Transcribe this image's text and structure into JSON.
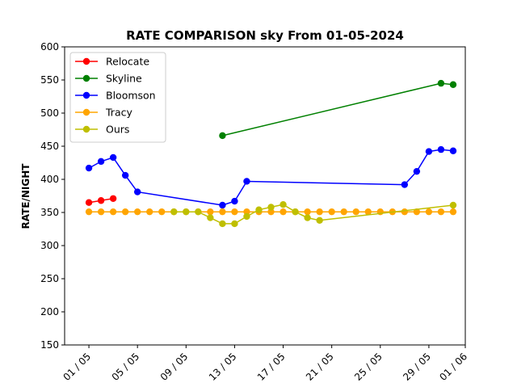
{
  "chart_data": {
    "type": "line",
    "title": "RATE COMPARISON sky From 01-05-2024",
    "xlabel": "",
    "ylabel": "RATE/NIGHT",
    "x_type": "date",
    "xlim": [
      "2024-04-29",
      "2024-06-01"
    ],
    "ylim": [
      150,
      600
    ],
    "x_ticks": [
      {
        "date": "2024-05-01",
        "label": "01 / 05"
      },
      {
        "date": "2024-05-05",
        "label": "05 / 05"
      },
      {
        "date": "2024-05-09",
        "label": "09 / 05"
      },
      {
        "date": "2024-05-13",
        "label": "13 / 05"
      },
      {
        "date": "2024-05-17",
        "label": "17 / 05"
      },
      {
        "date": "2024-05-21",
        "label": "21 / 05"
      },
      {
        "date": "2024-05-25",
        "label": "25 / 05"
      },
      {
        "date": "2024-05-29",
        "label": "29 / 05"
      },
      {
        "date": "2024-06-01",
        "label": "01 / 06"
      }
    ],
    "y_ticks": [
      150,
      200,
      250,
      300,
      350,
      400,
      450,
      500,
      550,
      600
    ],
    "grid": false,
    "legend_position": "top-left",
    "series": [
      {
        "name": "Relocate",
        "color": "#ff0000",
        "points": [
          [
            "2024-05-01",
            365
          ],
          [
            "2024-05-02",
            368
          ],
          [
            "2024-05-03",
            371
          ]
        ]
      },
      {
        "name": "Skyline",
        "color": "#008000",
        "points": [
          [
            "2024-05-12",
            466
          ],
          [
            "2024-05-30",
            545
          ],
          [
            "2024-05-31",
            543
          ]
        ]
      },
      {
        "name": "Bloomson",
        "color": "#0000ff",
        "points": [
          [
            "2024-05-01",
            417
          ],
          [
            "2024-05-02",
            427
          ],
          [
            "2024-05-03",
            433
          ],
          [
            "2024-05-04",
            406
          ],
          [
            "2024-05-05",
            381
          ],
          [
            "2024-05-12",
            361
          ],
          [
            "2024-05-13",
            367
          ],
          [
            "2024-05-14",
            397
          ],
          [
            "2024-05-27",
            392
          ],
          [
            "2024-05-28",
            412
          ],
          [
            "2024-05-29",
            442
          ],
          [
            "2024-05-30",
            445
          ],
          [
            "2024-05-31",
            443
          ]
        ]
      },
      {
        "name": "Tracy",
        "color": "#ffa500",
        "points": [
          [
            "2024-05-01",
            351
          ],
          [
            "2024-05-02",
            351
          ],
          [
            "2024-05-03",
            351
          ],
          [
            "2024-05-04",
            351
          ],
          [
            "2024-05-05",
            351
          ],
          [
            "2024-05-06",
            351
          ],
          [
            "2024-05-07",
            351
          ],
          [
            "2024-05-08",
            351
          ],
          [
            "2024-05-09",
            351
          ],
          [
            "2024-05-10",
            351
          ],
          [
            "2024-05-11",
            351
          ],
          [
            "2024-05-12",
            351
          ],
          [
            "2024-05-13",
            351
          ],
          [
            "2024-05-14",
            351
          ],
          [
            "2024-05-15",
            351
          ],
          [
            "2024-05-16",
            351
          ],
          [
            "2024-05-17",
            351
          ],
          [
            "2024-05-18",
            351
          ],
          [
            "2024-05-19",
            351
          ],
          [
            "2024-05-20",
            351
          ],
          [
            "2024-05-21",
            351
          ],
          [
            "2024-05-22",
            351
          ],
          [
            "2024-05-23",
            351
          ],
          [
            "2024-05-24",
            351
          ],
          [
            "2024-05-25",
            351
          ],
          [
            "2024-05-26",
            351
          ],
          [
            "2024-05-27",
            351
          ],
          [
            "2024-05-28",
            351
          ],
          [
            "2024-05-29",
            351
          ],
          [
            "2024-05-30",
            351
          ],
          [
            "2024-05-31",
            351
          ]
        ]
      },
      {
        "name": "Ours",
        "color": "#bfbf00",
        "points": [
          [
            "2024-05-08",
            351
          ],
          [
            "2024-05-09",
            351
          ],
          [
            "2024-05-10",
            351
          ],
          [
            "2024-05-11",
            342
          ],
          [
            "2024-05-12",
            333
          ],
          [
            "2024-05-13",
            333
          ],
          [
            "2024-05-14",
            344
          ],
          [
            "2024-05-15",
            354
          ],
          [
            "2024-05-16",
            358
          ],
          [
            "2024-05-17",
            362
          ],
          [
            "2024-05-18",
            351
          ],
          [
            "2024-05-19",
            342
          ],
          [
            "2024-05-20",
            338
          ],
          [
            "2024-05-31",
            361
          ]
        ]
      }
    ]
  }
}
